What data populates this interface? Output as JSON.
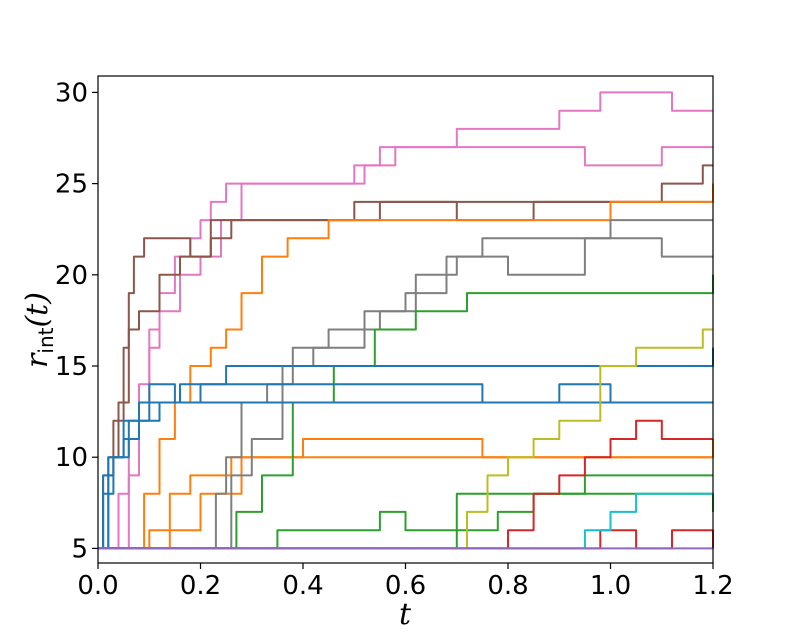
{
  "chart_data": {
    "type": "line",
    "title": "",
    "xlabel": "t",
    "ylabel": "r_int(t)",
    "ylabel_main": "r",
    "ylabel_sub": "int",
    "ylabel_rest": "(t)",
    "xlim": [
      0.0,
      1.2
    ],
    "ylim": [
      4.2,
      30.9
    ],
    "grid": false,
    "legend": "none",
    "xticks": [
      0.0,
      0.2,
      0.4,
      0.6,
      0.8,
      1.0,
      1.2
    ],
    "xtick_labels": [
      "0.0",
      "0.2",
      "0.4",
      "0.6",
      "0.8",
      "1.0",
      "1.2"
    ],
    "yticks": [
      5,
      10,
      15,
      20,
      25,
      30
    ],
    "ytick_labels": [
      "5",
      "10",
      "15",
      "20",
      "25",
      "30"
    ],
    "series": [
      {
        "name": "pink-1",
        "color": "#e377c2",
        "points": [
          [
            0.0,
            5
          ],
          [
            0.03,
            5
          ],
          [
            0.04,
            8
          ],
          [
            0.06,
            11
          ],
          [
            0.08,
            14
          ],
          [
            0.1,
            17
          ],
          [
            0.12,
            19
          ],
          [
            0.15,
            21
          ],
          [
            0.18,
            22
          ],
          [
            0.2,
            23
          ],
          [
            0.22,
            24
          ],
          [
            0.25,
            25
          ],
          [
            0.5,
            26
          ],
          [
            0.55,
            27
          ],
          [
            0.7,
            28
          ],
          [
            0.9,
            29
          ],
          [
            0.98,
            30
          ],
          [
            1.12,
            29
          ],
          [
            1.2,
            29
          ]
        ]
      },
      {
        "name": "pink-2",
        "color": "#e377c2",
        "points": [
          [
            0.0,
            5
          ],
          [
            0.04,
            5
          ],
          [
            0.06,
            9
          ],
          [
            0.08,
            13
          ],
          [
            0.1,
            16
          ],
          [
            0.12,
            18
          ],
          [
            0.16,
            20
          ],
          [
            0.2,
            21
          ],
          [
            0.24,
            23
          ],
          [
            0.28,
            25
          ],
          [
            0.52,
            26
          ],
          [
            0.58,
            27
          ],
          [
            0.8,
            27
          ],
          [
            0.95,
            26
          ],
          [
            1.1,
            27
          ],
          [
            1.2,
            27
          ]
        ]
      },
      {
        "name": "brown-1",
        "color": "#8c564b",
        "points": [
          [
            0.0,
            5
          ],
          [
            0.01,
            9
          ],
          [
            0.03,
            12
          ],
          [
            0.05,
            16
          ],
          [
            0.06,
            19
          ],
          [
            0.07,
            21
          ],
          [
            0.09,
            22
          ],
          [
            0.18,
            21
          ],
          [
            0.22,
            22
          ],
          [
            0.26,
            23
          ],
          [
            0.45,
            23
          ],
          [
            0.5,
            24
          ],
          [
            0.7,
            23
          ],
          [
            0.85,
            24
          ],
          [
            1.1,
            25
          ],
          [
            1.18,
            26
          ],
          [
            1.2,
            26
          ]
        ]
      },
      {
        "name": "brown-2",
        "color": "#8c564b",
        "points": [
          [
            0.0,
            5
          ],
          [
            0.02,
            10
          ],
          [
            0.04,
            13
          ],
          [
            0.06,
            17
          ],
          [
            0.08,
            18
          ],
          [
            0.12,
            20
          ],
          [
            0.16,
            21
          ],
          [
            0.22,
            23
          ],
          [
            0.3,
            23
          ],
          [
            0.4,
            23
          ],
          [
            0.55,
            24
          ],
          [
            0.75,
            24
          ],
          [
            0.95,
            24
          ],
          [
            1.2,
            24
          ]
        ]
      },
      {
        "name": "orange-1",
        "color": "#ff7f0e",
        "points": [
          [
            0.0,
            5
          ],
          [
            0.06,
            5
          ],
          [
            0.09,
            8
          ],
          [
            0.12,
            11
          ],
          [
            0.15,
            13
          ],
          [
            0.18,
            15
          ],
          [
            0.22,
            16
          ],
          [
            0.25,
            17
          ],
          [
            0.28,
            19
          ],
          [
            0.32,
            21
          ],
          [
            0.37,
            22
          ],
          [
            0.45,
            23
          ],
          [
            0.6,
            23
          ],
          [
            0.8,
            23
          ],
          [
            1.0,
            24
          ],
          [
            1.2,
            25
          ]
        ]
      },
      {
        "name": "orange-2",
        "color": "#ff7f0e",
        "points": [
          [
            0.0,
            5
          ],
          [
            0.08,
            5
          ],
          [
            0.1,
            6
          ],
          [
            0.14,
            8
          ],
          [
            0.18,
            9
          ],
          [
            0.26,
            10
          ],
          [
            0.4,
            11
          ],
          [
            0.67,
            11
          ],
          [
            0.75,
            10
          ],
          [
            1.2,
            10
          ]
        ]
      },
      {
        "name": "orange-3",
        "color": "#ff7f0e",
        "points": [
          [
            0.0,
            5
          ],
          [
            0.1,
            5
          ],
          [
            0.14,
            6
          ],
          [
            0.2,
            8
          ],
          [
            0.28,
            10
          ],
          [
            0.55,
            10
          ],
          [
            0.9,
            10
          ],
          [
            1.2,
            11
          ]
        ]
      },
      {
        "name": "gray-1",
        "color": "#7f7f7f",
        "points": [
          [
            0.0,
            5
          ],
          [
            0.21,
            5
          ],
          [
            0.23,
            8
          ],
          [
            0.25,
            10
          ],
          [
            0.28,
            13
          ],
          [
            0.33,
            14
          ],
          [
            0.38,
            16
          ],
          [
            0.45,
            17
          ],
          [
            0.55,
            18
          ],
          [
            0.62,
            20
          ],
          [
            0.7,
            21
          ],
          [
            0.75,
            22
          ],
          [
            0.9,
            22
          ],
          [
            1.0,
            23
          ],
          [
            1.2,
            23
          ]
        ]
      },
      {
        "name": "gray-2",
        "color": "#7f7f7f",
        "points": [
          [
            0.0,
            5
          ],
          [
            0.23,
            5
          ],
          [
            0.26,
            9
          ],
          [
            0.3,
            11
          ],
          [
            0.36,
            15
          ],
          [
            0.42,
            16
          ],
          [
            0.52,
            18
          ],
          [
            0.6,
            19
          ],
          [
            0.68,
            21
          ],
          [
            0.8,
            20
          ],
          [
            0.95,
            22
          ],
          [
            1.1,
            21
          ],
          [
            1.2,
            21
          ]
        ]
      },
      {
        "name": "green-1",
        "color": "#2ca02c",
        "points": [
          [
            0.0,
            5
          ],
          [
            0.25,
            5
          ],
          [
            0.27,
            7
          ],
          [
            0.32,
            9
          ],
          [
            0.38,
            13
          ],
          [
            0.46,
            15
          ],
          [
            0.54,
            17
          ],
          [
            0.62,
            18
          ],
          [
            0.72,
            19
          ],
          [
            0.8,
            19
          ],
          [
            0.85,
            19
          ],
          [
            1.18,
            19
          ],
          [
            1.2,
            20
          ]
        ]
      },
      {
        "name": "green-2",
        "color": "#2ca02c",
        "points": [
          [
            0.0,
            5
          ],
          [
            0.3,
            5
          ],
          [
            0.35,
            6
          ],
          [
            0.45,
            6
          ],
          [
            0.55,
            7
          ],
          [
            0.6,
            6
          ],
          [
            0.7,
            8
          ],
          [
            0.85,
            8
          ],
          [
            0.95,
            9
          ],
          [
            1.2,
            9
          ]
        ]
      },
      {
        "name": "green-3",
        "color": "#2ca02c",
        "points": [
          [
            0.0,
            5
          ],
          [
            0.4,
            5
          ],
          [
            0.6,
            5
          ],
          [
            0.7,
            6
          ],
          [
            0.78,
            7
          ],
          [
            0.85,
            8
          ],
          [
            0.95,
            8
          ],
          [
            1.2,
            7
          ]
        ]
      },
      {
        "name": "blue-1",
        "color": "#1f77b4",
        "points": [
          [
            0.0,
            5
          ],
          [
            0.01,
            9
          ],
          [
            0.03,
            10
          ],
          [
            0.05,
            12
          ],
          [
            0.08,
            13
          ],
          [
            0.1,
            14
          ],
          [
            0.15,
            13
          ],
          [
            0.2,
            14
          ],
          [
            0.3,
            14
          ],
          [
            0.45,
            14
          ],
          [
            0.6,
            14
          ],
          [
            0.75,
            13
          ],
          [
            0.9,
            14
          ],
          [
            1.0,
            13
          ],
          [
            1.2,
            13
          ]
        ]
      },
      {
        "name": "blue-2",
        "color": "#1f77b4",
        "points": [
          [
            0.0,
            5
          ],
          [
            0.01,
            8
          ],
          [
            0.03,
            10
          ],
          [
            0.06,
            12
          ],
          [
            0.1,
            13
          ],
          [
            0.16,
            14
          ],
          [
            0.25,
            15
          ],
          [
            0.4,
            15
          ],
          [
            0.55,
            15
          ],
          [
            0.75,
            15
          ],
          [
            0.95,
            15
          ],
          [
            1.15,
            15
          ],
          [
            1.2,
            16
          ]
        ]
      },
      {
        "name": "blue-3",
        "color": "#1f77b4",
        "points": [
          [
            0.0,
            5
          ],
          [
            0.02,
            10
          ],
          [
            0.05,
            11
          ],
          [
            0.08,
            12
          ],
          [
            0.12,
            13
          ],
          [
            0.3,
            13
          ],
          [
            0.5,
            13
          ],
          [
            0.7,
            13
          ],
          [
            0.9,
            13
          ],
          [
            1.2,
            13
          ]
        ]
      },
      {
        "name": "olive-1",
        "color": "#bcbd22",
        "points": [
          [
            0.0,
            5
          ],
          [
            0.68,
            5
          ],
          [
            0.72,
            7
          ],
          [
            0.76,
            9
          ],
          [
            0.8,
            10
          ],
          [
            0.85,
            11
          ],
          [
            0.9,
            12
          ],
          [
            0.98,
            15
          ],
          [
            1.05,
            16
          ],
          [
            1.18,
            17
          ],
          [
            1.2,
            17
          ]
        ]
      },
      {
        "name": "red-1",
        "color": "#d62728",
        "points": [
          [
            0.0,
            5
          ],
          [
            0.75,
            5
          ],
          [
            0.8,
            6
          ],
          [
            0.85,
            8
          ],
          [
            0.9,
            9
          ],
          [
            0.95,
            10
          ],
          [
            1.0,
            11
          ],
          [
            1.05,
            12
          ],
          [
            1.1,
            11
          ],
          [
            1.2,
            11
          ]
        ]
      },
      {
        "name": "red-2",
        "color": "#d62728",
        "points": [
          [
            0.0,
            5
          ],
          [
            0.95,
            5
          ],
          [
            0.98,
            6
          ],
          [
            1.05,
            5
          ],
          [
            1.12,
            6
          ],
          [
            1.2,
            5
          ]
        ]
      },
      {
        "name": "cyan-1",
        "color": "#17becf",
        "points": [
          [
            0.0,
            5
          ],
          [
            0.92,
            5
          ],
          [
            0.95,
            6
          ],
          [
            1.0,
            7
          ],
          [
            1.05,
            8
          ],
          [
            1.1,
            8
          ],
          [
            1.2,
            8
          ]
        ]
      },
      {
        "name": "purple-1",
        "color": "#9467bd",
        "points": [
          [
            0.0,
            5
          ],
          [
            1.2,
            5
          ]
        ]
      }
    ]
  }
}
